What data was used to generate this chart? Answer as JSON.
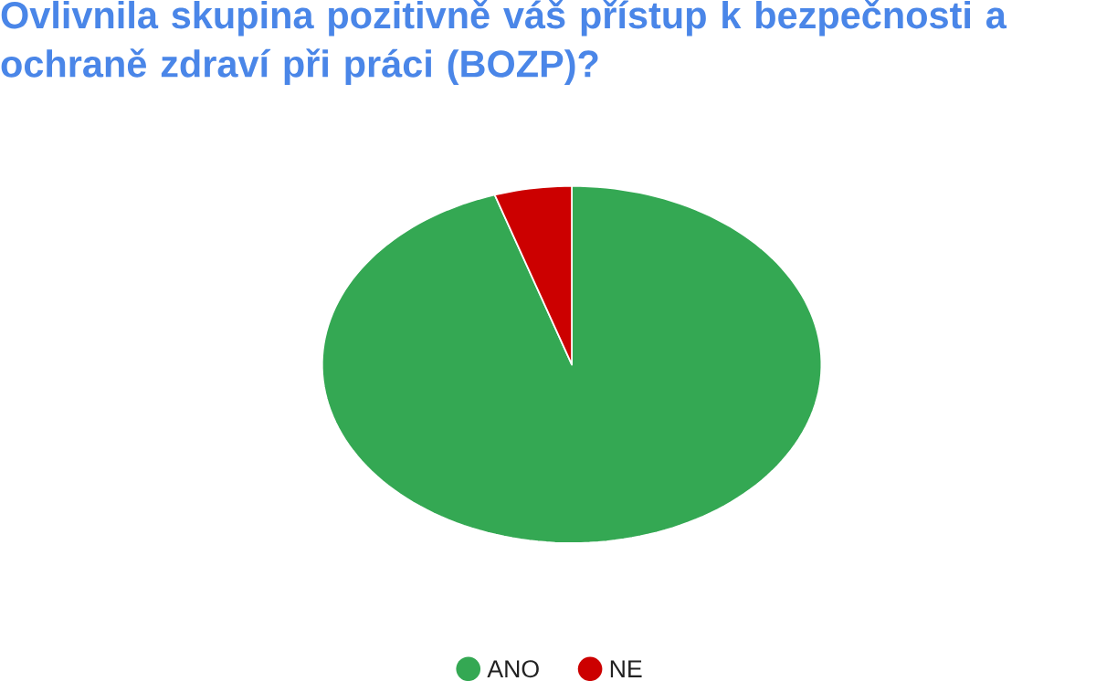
{
  "chart_data": {
    "type": "pie",
    "title": "Ovlivnila skupina pozitivně váš přístup k bezpečnosti a ochraně zdraví při práci (BOZP)?",
    "categories": [
      "ANO",
      "NE"
    ],
    "values": [
      95,
      5
    ],
    "colors": [
      "#34a853",
      "#cc0000"
    ],
    "legend": "bottom"
  }
}
